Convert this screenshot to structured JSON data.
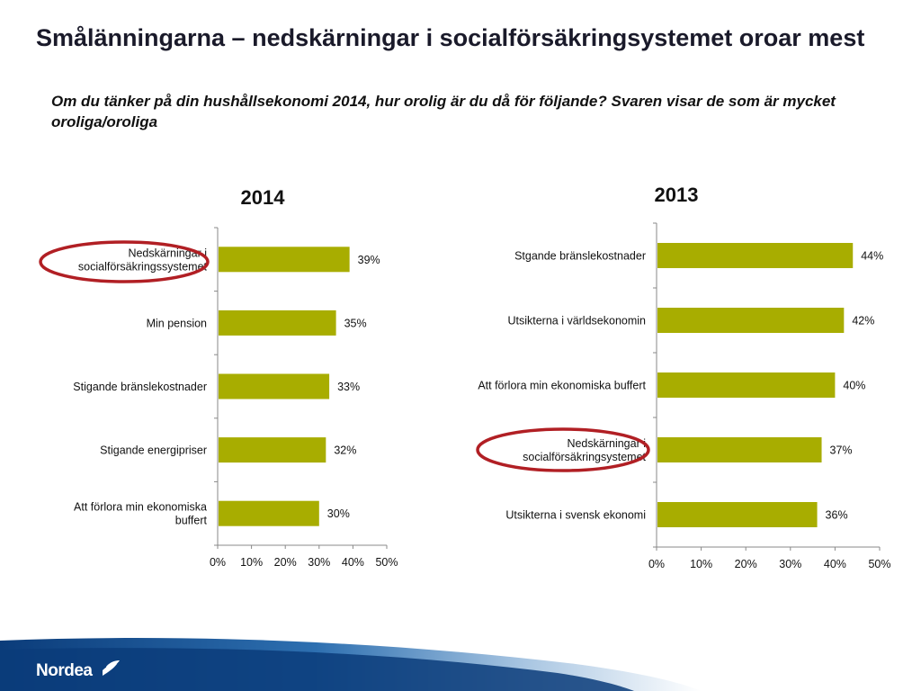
{
  "title": "Smålänningarna – nedskärningar i socialförsäkringsystemet oroar mest",
  "subtitle": "Om du tänker på din hushållsekonomi 2014, hur orolig är du då för följande? Svaren visar de som är mycket oroliga/oroliga",
  "logo": {
    "text": "Nordea"
  },
  "colors": {
    "bar": "#a8ad00",
    "highlight": "#b11f24",
    "footer": "#0b3c7a"
  },
  "chart_data": [
    {
      "type": "bar",
      "orientation": "horizontal",
      "title": "2014",
      "categories": [
        [
          "Nedskärningar i",
          "socialförsäkringssystemet"
        ],
        [
          "Min pension"
        ],
        [
          "Stigande bränslekostnader"
        ],
        [
          "Stigande energipriser"
        ],
        [
          "Att förlora min ekonomiska",
          "buffert"
        ]
      ],
      "values": [
        39,
        35,
        33,
        32,
        30
      ],
      "data_labels": [
        "39%",
        "35%",
        "33%",
        "32%",
        "30%"
      ],
      "ticks": [
        "0%",
        "10%",
        "20%",
        "30%",
        "40%",
        "50%"
      ],
      "xlim": [
        0,
        50
      ],
      "highlighted_index": 0
    },
    {
      "type": "bar",
      "orientation": "horizontal",
      "title": "2013",
      "categories": [
        [
          "Stgande bränslekostnader"
        ],
        [
          "Utsikterna i världsekonomin"
        ],
        [
          "Att förlora min ekonomiska buffert"
        ],
        [
          "Nedskärningar i",
          "socialförsäkringsystemet"
        ],
        [
          "Utsikterna i svensk ekonomi"
        ]
      ],
      "values": [
        44,
        42,
        40,
        37,
        36
      ],
      "data_labels": [
        "44%",
        "42%",
        "40%",
        "37%",
        "36%"
      ],
      "ticks": [
        "0%",
        "10%",
        "20%",
        "30%",
        "40%",
        "50%"
      ],
      "xlim": [
        0,
        50
      ],
      "highlighted_index": 3
    }
  ]
}
